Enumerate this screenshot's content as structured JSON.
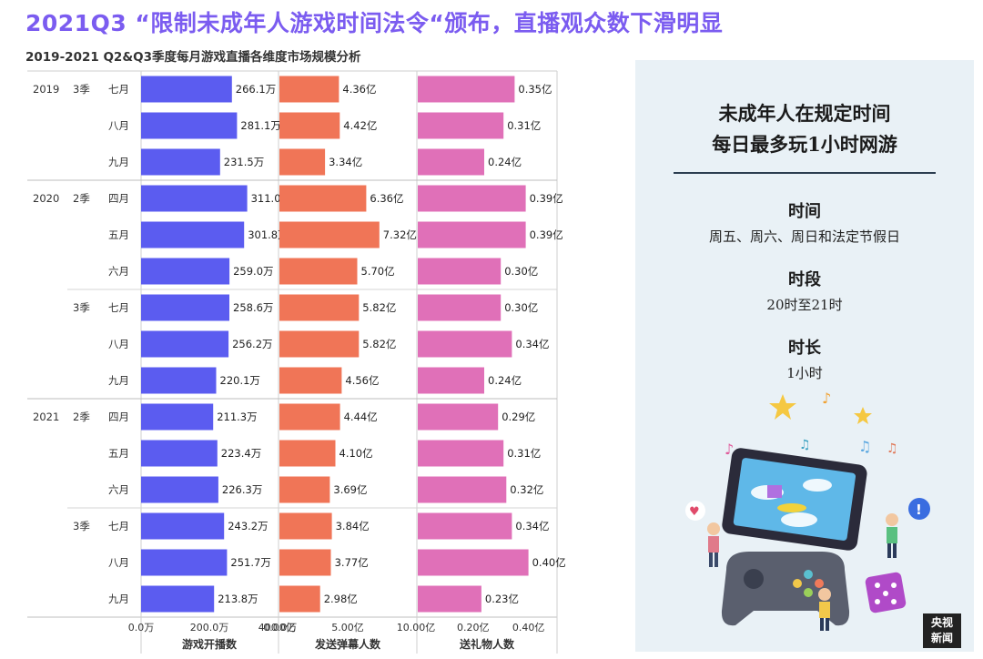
{
  "slide_title": "2021Q3 “限制未成年人游戏时间法令“颁布，直播观众数下滑明显",
  "chart_data": {
    "type": "bar",
    "title": "2019-2021 Q2&Q3季度每月游戏直播各维度市场规模分析",
    "rows": [
      {
        "year": "2019",
        "quarter": "3季",
        "month": "七月",
        "broadcasters": 266.1,
        "danmaku": 4.36,
        "gifts": 0.35
      },
      {
        "year": "",
        "quarter": "",
        "month": "八月",
        "broadcasters": 281.1,
        "danmaku": 4.42,
        "gifts": 0.31
      },
      {
        "year": "",
        "quarter": "",
        "month": "九月",
        "broadcasters": 231.5,
        "danmaku": 3.34,
        "gifts": 0.24
      },
      {
        "year": "2020",
        "quarter": "2季",
        "month": "四月",
        "broadcasters": 311.0,
        "danmaku": 6.36,
        "gifts": 0.39
      },
      {
        "year": "",
        "quarter": "",
        "month": "五月",
        "broadcasters": 301.8,
        "danmaku": 7.32,
        "gifts": 0.39
      },
      {
        "year": "",
        "quarter": "",
        "month": "六月",
        "broadcasters": 259.0,
        "danmaku": 5.7,
        "gifts": 0.3
      },
      {
        "year": "",
        "quarter": "3季",
        "month": "七月",
        "broadcasters": 258.6,
        "danmaku": 5.82,
        "gifts": 0.3
      },
      {
        "year": "",
        "quarter": "",
        "month": "八月",
        "broadcasters": 256.2,
        "danmaku": 5.82,
        "gifts": 0.34
      },
      {
        "year": "",
        "quarter": "",
        "month": "九月",
        "broadcasters": 220.1,
        "danmaku": 4.56,
        "gifts": 0.24
      },
      {
        "year": "2021",
        "quarter": "2季",
        "month": "四月",
        "broadcasters": 211.3,
        "danmaku": 4.44,
        "gifts": 0.29
      },
      {
        "year": "",
        "quarter": "",
        "month": "五月",
        "broadcasters": 223.4,
        "danmaku": 4.1,
        "gifts": 0.31
      },
      {
        "year": "",
        "quarter": "",
        "month": "六月",
        "broadcasters": 226.3,
        "danmaku": 3.69,
        "gifts": 0.32
      },
      {
        "year": "",
        "quarter": "3季",
        "month": "七月",
        "broadcasters": 243.2,
        "danmaku": 3.84,
        "gifts": 0.34
      },
      {
        "year": "",
        "quarter": "",
        "month": "八月",
        "broadcasters": 251.7,
        "danmaku": 3.77,
        "gifts": 0.4
      },
      {
        "year": "",
        "quarter": "",
        "month": "九月",
        "broadcasters": 213.8,
        "danmaku": 2.98,
        "gifts": 0.23
      }
    ],
    "series": [
      {
        "key": "broadcasters",
        "name": "游戏开播数",
        "unit": "万",
        "decimals": 1,
        "color": "#5b5cf0",
        "range": [
          0,
          400
        ],
        "ticks": [
          {
            "v": 0,
            "label": "0.0万"
          },
          {
            "v": 200,
            "label": "200.0万"
          },
          {
            "v": 400,
            "label": "400.0万"
          }
        ]
      },
      {
        "key": "danmaku",
        "name": "发送弹幕人数",
        "unit": "亿",
        "decimals": 2,
        "color": "#f07557",
        "range": [
          0,
          10
        ],
        "ticks": [
          {
            "v": 0,
            "label": "0.00亿"
          },
          {
            "v": 5,
            "label": "5.00亿"
          },
          {
            "v": 10,
            "label": "10.00亿"
          }
        ]
      },
      {
        "key": "gifts",
        "name": "送礼物人数",
        "unit": "亿",
        "decimals": 2,
        "color": "#e070b8",
        "range": [
          0,
          0.5
        ],
        "ticks": [
          {
            "v": 0.2,
            "label": "0.20亿"
          },
          {
            "v": 0.4,
            "label": "0.40亿"
          }
        ]
      }
    ]
  },
  "panel": {
    "heading_line1": "未成年人在规定时间",
    "heading_line2": "每日最多玩1小时网游",
    "sections": [
      {
        "title": "时间",
        "value": "周五、周六、周日和法定节假日"
      },
      {
        "title": "时段",
        "value": "20时至21时"
      },
      {
        "title": "时长",
        "value": "1小时"
      }
    ],
    "logo_line1": "央视",
    "logo_line2": "新闻"
  }
}
